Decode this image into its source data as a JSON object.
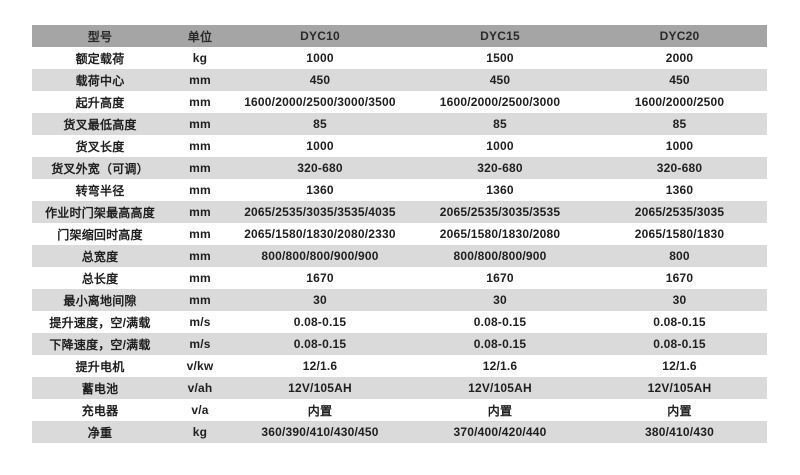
{
  "table": {
    "header": {
      "model_label": "型号",
      "unit_label": "单位",
      "models": [
        "DYC10",
        "DYC15",
        "DYC20"
      ]
    },
    "columns": [
      "型号",
      "单位",
      "DYC10",
      "DYC15",
      "DYC20"
    ],
    "rows": [
      {
        "label": "额定载荷",
        "unit": "kg",
        "values": [
          "1000",
          "1500",
          "2000"
        ]
      },
      {
        "label": "载荷中心",
        "unit": "mm",
        "values": [
          "450",
          "450",
          "450"
        ]
      },
      {
        "label": "起升高度",
        "unit": "mm",
        "values": [
          "1600/2000/2500/3000/3500",
          "1600/2000/2500/3000",
          "1600/2000/2500"
        ]
      },
      {
        "label": "货叉最低高度",
        "unit": "mm",
        "values": [
          "85",
          "85",
          "85"
        ]
      },
      {
        "label": "货叉长度",
        "unit": "mm",
        "values": [
          "1000",
          "1000",
          "1000"
        ]
      },
      {
        "label": "货叉外宽（可调）",
        "unit": "mm",
        "values": [
          "320-680",
          "320-680",
          "320-680"
        ]
      },
      {
        "label": "转弯半径",
        "unit": "mm",
        "values": [
          "1360",
          "1360",
          "1360"
        ]
      },
      {
        "label": "作业时门架最高高度",
        "unit": "mm",
        "values": [
          "2065/2535/3035/3535/4035",
          "2065/2535/3035/3535",
          "2065/2535/3035"
        ]
      },
      {
        "label": "门架缩回时高度",
        "unit": "mm",
        "values": [
          "2065/1580/1830/2080/2330",
          "2065/1580/1830/2080",
          "2065/1580/1830"
        ]
      },
      {
        "label": "总宽度",
        "unit": "mm",
        "values": [
          "800/800/800/900/900",
          "800/800/800/900",
          "800"
        ]
      },
      {
        "label": "总长度",
        "unit": "mm",
        "values": [
          "1670",
          "1670",
          "1670"
        ]
      },
      {
        "label": "最小离地间隙",
        "unit": "mm",
        "values": [
          "30",
          "30",
          "30"
        ]
      },
      {
        "label": "提升速度，空/满载",
        "unit": "m/s",
        "values": [
          "0.08-0.15",
          "0.08-0.15",
          "0.08-0.15"
        ]
      },
      {
        "label": "下降速度，空/满载",
        "unit": "m/s",
        "values": [
          "0.08-0.15",
          "0.08-0.15",
          "0.08-0.15"
        ]
      },
      {
        "label": "提升电机",
        "unit": "v/kw",
        "values": [
          "12/1.6",
          "12/1.6",
          "12/1.6"
        ]
      },
      {
        "label": "蓄电池",
        "unit": "v/ah",
        "values": [
          "12V/105AH",
          "12V/105AH",
          "12V/105AH"
        ]
      },
      {
        "label": "充电器",
        "unit": "v/a",
        "values": [
          "内置",
          "内置",
          "内置"
        ]
      },
      {
        "label": "净重",
        "unit": "kg",
        "values": [
          "360/390/410/430/450",
          "370/400/420/440",
          "380/410/430"
        ]
      }
    ]
  },
  "colors": {
    "header_bg": "#a5a5a5",
    "stripe_bg": "#dadada",
    "row_bg": "#ffffff",
    "text": "#1f1f1f"
  }
}
